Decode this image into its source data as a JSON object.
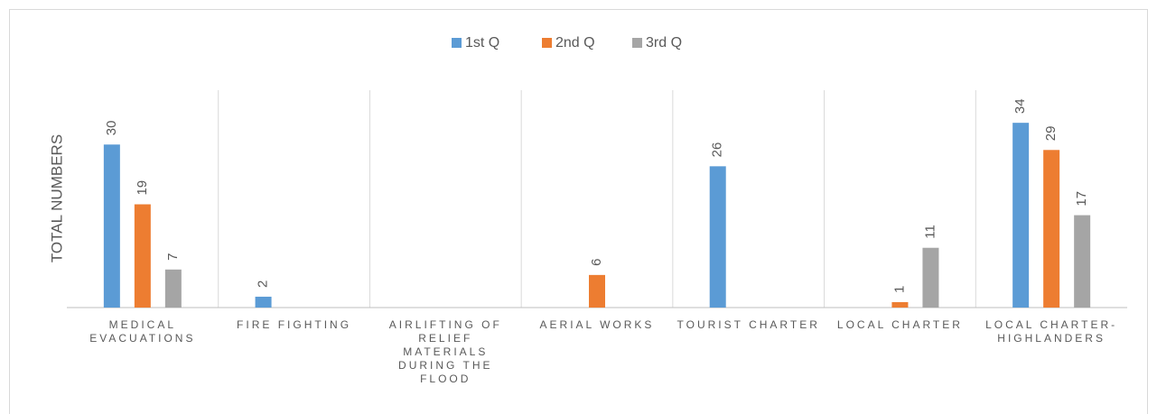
{
  "chart_data": {
    "type": "bar",
    "y_label": "TOTAL NUMBERS",
    "categories": [
      "MEDICAL EVACUATIONS",
      "FIRE FIGHTING",
      "AIRLIFTING OF RELIEF MATERIALS DURING THE FLOOD",
      "AERIAL WORKS",
      "TOURIST CHARTER",
      "LOCAL CHARTER",
      "LOCAL CHARTER-HIGHLANDERS"
    ],
    "series": [
      {
        "name": "1st Q",
        "color": "#5b9bd5",
        "values": [
          30,
          2,
          null,
          null,
          26,
          null,
          34
        ]
      },
      {
        "name": "2nd Q",
        "color": "#ed7d31",
        "values": [
          19,
          null,
          null,
          6,
          null,
          1,
          29
        ]
      },
      {
        "name": "3rd Q",
        "color": "#a5a5a5",
        "values": [
          7,
          null,
          null,
          null,
          null,
          11,
          17
        ]
      }
    ],
    "ylim": [
      0,
      40
    ],
    "legend": "top"
  }
}
